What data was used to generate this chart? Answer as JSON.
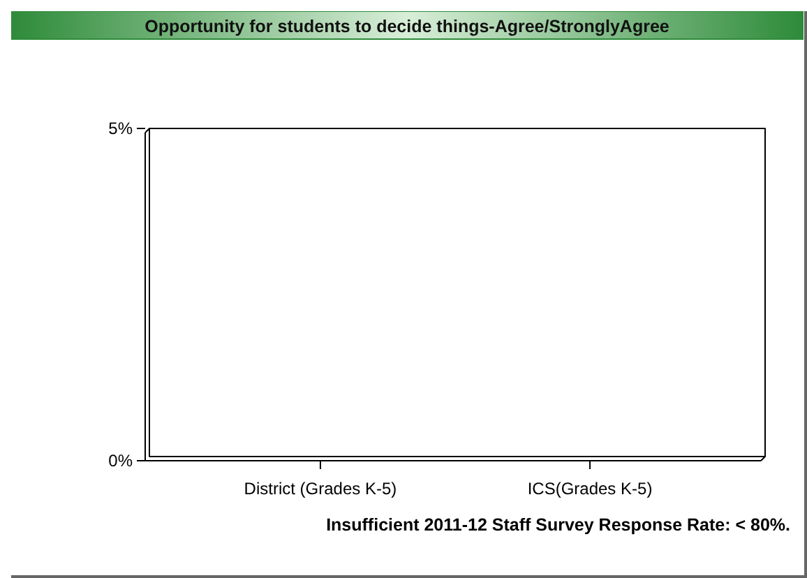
{
  "chart_data": {
    "type": "bar",
    "title": "Opportunity for students to decide things-Agree/StronglyAgree",
    "categories": [
      "District (Grades K-5)",
      "ICS(Grades K-5)"
    ],
    "values": [
      null,
      null
    ],
    "ylim": [
      0,
      5
    ],
    "yticks": [
      {
        "value": 0,
        "label": "0%"
      },
      {
        "value": 5,
        "label": "5%"
      }
    ],
    "annotations": [
      "Insufficient 2011-12 Staff Survey Response Rate: < 80%."
    ]
  }
}
